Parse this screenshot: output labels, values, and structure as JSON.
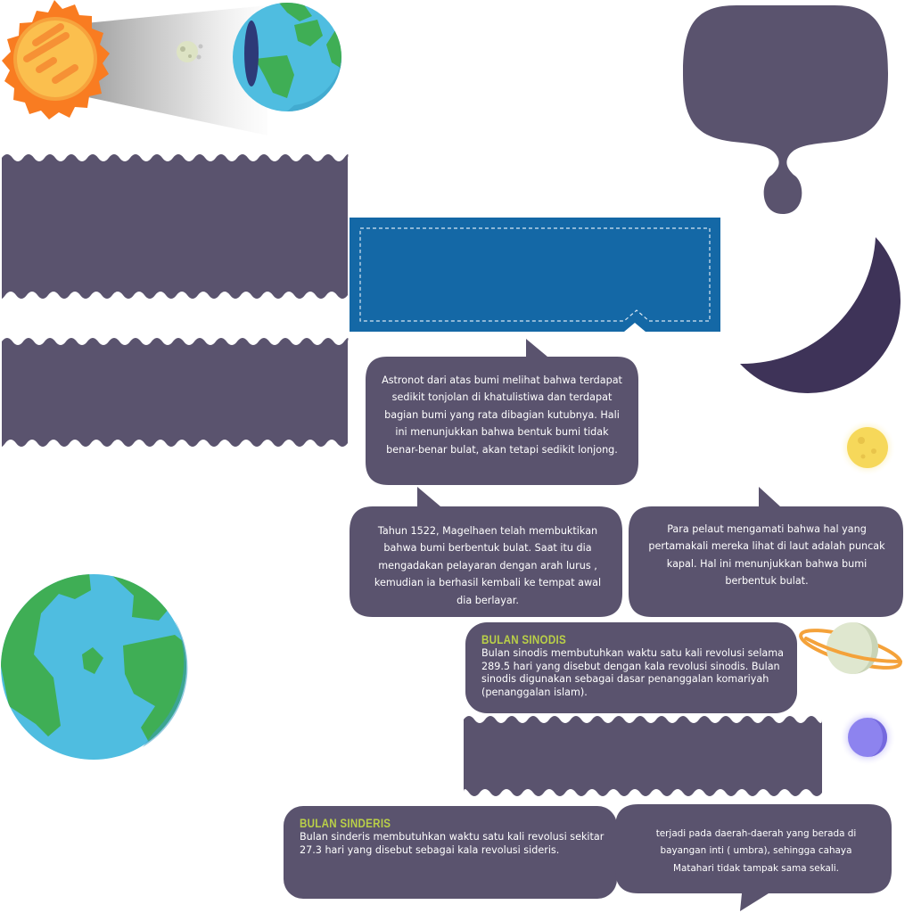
{
  "colors": {
    "panel": "#5a536e",
    "banner": "#1468a6",
    "moon_crescent": "#3e3358",
    "title_green": "#b9cf48",
    "earth_ocean": "#4fbde0",
    "earth_land": "#3fae55"
  },
  "icons": [
    "sun-icon",
    "moon-icon",
    "earth-icon",
    "planet-ringed-icon",
    "star-yellow-icon",
    "star-purple-icon",
    "crescent-moon-icon"
  ],
  "bubbles": {
    "astronot": "Astronot dari atas bumi melihat bahwa terdapat sedikit tonjolan di khatulistiwa dan terdapat bagian bumi yang rata dibagian kutubnya. Hali ini menunjukkan bahwa bentuk bumi tidak benar-benar bulat, akan tetapi sedikit lonjong.",
    "magelhaen": "Tahun 1522, Magelhaen telah membuktikan bahwa bumi berbentuk bulat. Saat itu dia mengadakan pelayaran dengan arah lurus , kemudian ia berhasil kembali ke tempat awal dia berlayar.",
    "pelaut": "Para pelaut mengamati bahwa hal yang pertamakali mereka lihat di laut adalah puncak kapal. Hal ini menunjukkan bahwa bumi berbentuk bulat.",
    "umbra": "terjadi pada daerah-daerah yang berada di bayangan inti ( umbra), sehingga cahaya Matahari tidak tampak sama sekali."
  },
  "sinodis": {
    "title": "BULAN SINODIS",
    "text": "Bulan sinodis membutuhkan waktu satu kali revolusi selama 289.5 hari yang disebut dengan kala revolusi sinodis. Bulan sinodis digunakan sebagai dasar penanggalan komariyah (penanggalan islam)."
  },
  "sinderis": {
    "title": "BULAN SINDERIS",
    "text": "Bulan sinderis membutuhkan waktu satu kali revolusi sekitar 27.3 hari yang disebut sebagai kala revolusi sideris."
  }
}
